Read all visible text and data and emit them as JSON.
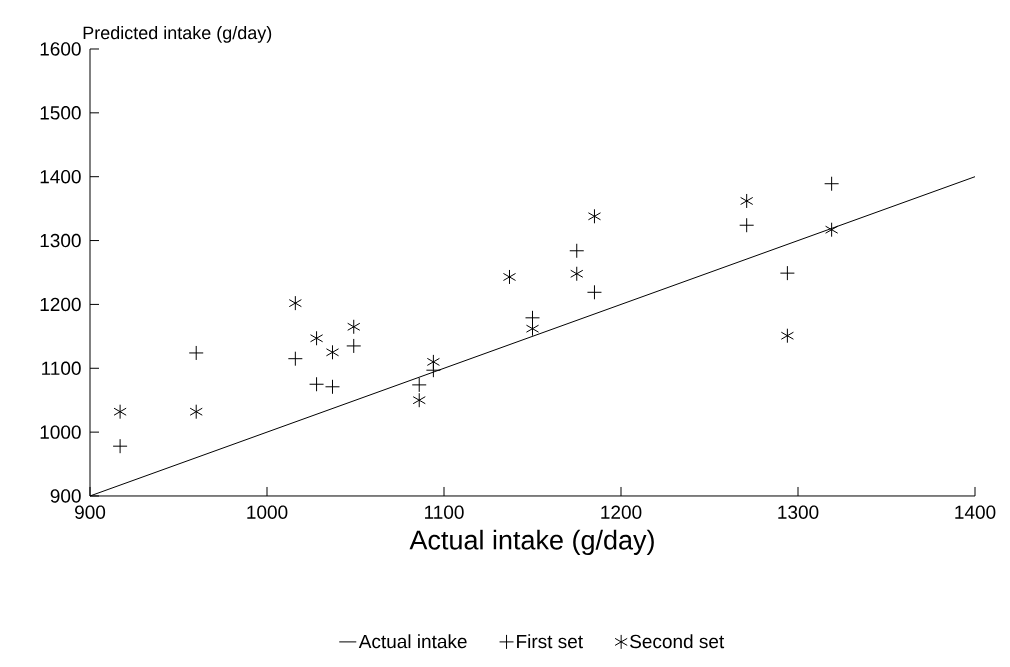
{
  "chart_data": {
    "type": "scatter",
    "xlabel": "Actual intake (g/day)",
    "ylabel": "Predicted intake (g/day)",
    "xlim": [
      900,
      1400
    ],
    "ylim": [
      900,
      1600
    ],
    "xticks": [
      900,
      1000,
      1100,
      1200,
      1300,
      1400
    ],
    "yticks": [
      900,
      1000,
      1100,
      1200,
      1300,
      1400,
      1500,
      1600
    ],
    "grid": false,
    "legend": "bottom",
    "series": [
      {
        "name": "Actual intake",
        "type": "line",
        "marker": "none",
        "line_style": "solid",
        "color": "#000000",
        "x": [
          900,
          1400
        ],
        "values": [
          900,
          1400
        ]
      },
      {
        "name": "First set",
        "marker": "cross",
        "color": "#000000",
        "x": [
          917,
          960,
          1016,
          1028,
          1037,
          1049,
          1086,
          1094,
          1137,
          1150,
          1175,
          1185,
          1271,
          1294,
          1319
        ],
        "values": [
          978,
          1124,
          1115,
          1075,
          1071,
          1135,
          1074,
          1097,
          null,
          1179,
          1284,
          1219,
          1324,
          1249,
          1389
        ]
      },
      {
        "name": "Second set",
        "color": "#000000",
        "x": [
          917,
          960,
          1016,
          1028,
          1037,
          1049,
          1086,
          1094,
          1137,
          1150,
          1175,
          1185,
          1271,
          1294,
          1319
        ],
        "values": [
          1032,
          1032,
          1202,
          1147,
          1125,
          1165,
          1050,
          1110,
          1243,
          1162,
          1248,
          1338,
          1362,
          1151,
          1317
        ]
      }
    ]
  }
}
